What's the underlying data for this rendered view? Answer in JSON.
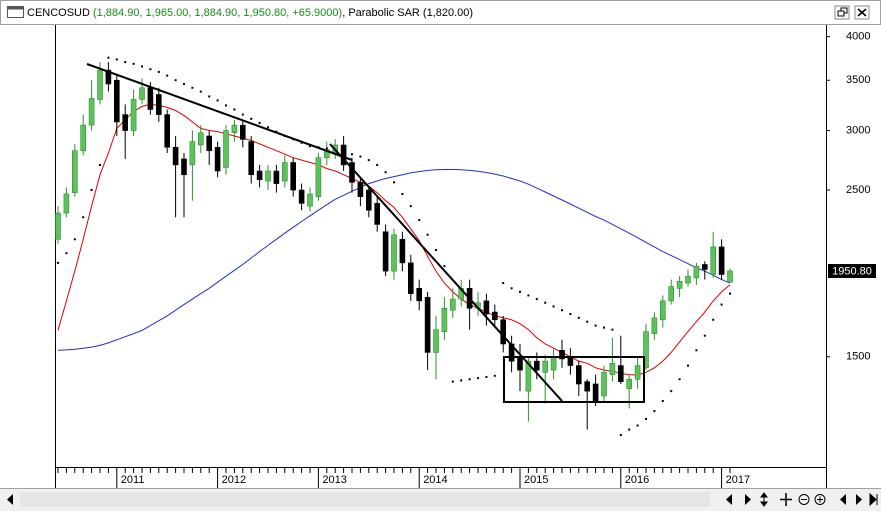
{
  "chart_data": {
    "type": "candlestick",
    "title": "CENCOSUD",
    "ohlc_label": "(1,884.90, 1,965.00, 1,884.90, 1,950.80, +65.9000)",
    "indicator_label": ", Parabolic SAR (1,820.00)",
    "categories": [
      null,
      null,
      null,
      null,
      null,
      null,
      null,
      "2011",
      null,
      null,
      null,
      null,
      null,
      null,
      null,
      null,
      null,
      null,
      null,
      "2012",
      null,
      null,
      null,
      null,
      null,
      null,
      null,
      null,
      null,
      null,
      null,
      "2013",
      null,
      null,
      null,
      null,
      null,
      null,
      null,
      null,
      null,
      null,
      null,
      "2014",
      null,
      null,
      null,
      null,
      null,
      null,
      null,
      null,
      null,
      null,
      null,
      "2015",
      null,
      null,
      null,
      null,
      null,
      null,
      null,
      null,
      null,
      null,
      null,
      "2016",
      null,
      null,
      null,
      null,
      null,
      null,
      null,
      null,
      null,
      null,
      null,
      "2017",
      null
    ],
    "open": [
      2150,
      2330,
      2480,
      2820,
      3050,
      3300,
      3610,
      3500,
      3150,
      3000,
      3300,
      3420,
      3350,
      3150,
      2850,
      2750,
      2700,
      2870,
      2950,
      2850,
      2680,
      2980,
      3050,
      2900,
      2650,
      2570,
      2650,
      2570,
      2720,
      2500,
      2380,
      2450,
      2760,
      2800,
      2870,
      2720,
      2560,
      2500,
      2400,
      2200,
      1950,
      2150,
      2000,
      1850,
      1800,
      1520,
      1620,
      1730,
      1790,
      1850,
      1740,
      1780,
      1720,
      1680,
      1560,
      1500,
      1350,
      1480,
      1430,
      1440,
      1530,
      1500,
      1460,
      1390,
      1380,
      1330,
      1420,
      1460,
      1360,
      1400,
      1450,
      1610,
      1680,
      1780,
      1850,
      1880,
      1910,
      1990,
      1930,
      2100,
      1884.9
    ],
    "high": [
      2380,
      2520,
      2880,
      3150,
      3500,
      3700,
      3700,
      3560,
      3250,
      3400,
      3520,
      3480,
      3420,
      3200,
      2950,
      2800,
      3000,
      3050,
      3000,
      2900,
      3050,
      3100,
      3100,
      2950,
      2700,
      2700,
      2700,
      2780,
      2760,
      2550,
      2520,
      2800,
      2900,
      2920,
      2950,
      2760,
      2600,
      2520,
      2450,
      2250,
      2220,
      2200,
      2050,
      1900,
      1830,
      1700,
      1800,
      1850,
      1900,
      1900,
      1830,
      1820,
      1760,
      1700,
      1600,
      1560,
      1500,
      1520,
      1510,
      1540,
      1580,
      1540,
      1480,
      1400,
      1420,
      1460,
      1590,
      1600,
      1420,
      1500,
      1660,
      1720,
      1810,
      1900,
      1920,
      1960,
      2000,
      2010,
      2200,
      2150,
      1965
    ],
    "low": [
      2120,
      2300,
      2450,
      2780,
      3000,
      3250,
      3380,
      2950,
      2750,
      2950,
      3250,
      3150,
      3080,
      2800,
      2300,
      2300,
      2420,
      2800,
      2700,
      2600,
      2620,
      2900,
      2850,
      2550,
      2520,
      2500,
      2480,
      2520,
      2450,
      2350,
      2340,
      2420,
      2700,
      2750,
      2650,
      2480,
      2380,
      2300,
      2200,
      1920,
      1900,
      1950,
      1780,
      1730,
      1440,
      1400,
      1580,
      1690,
      1750,
      1630,
      1700,
      1650,
      1640,
      1520,
      1430,
      1350,
      1230,
      1400,
      1300,
      1400,
      1450,
      1420,
      1330,
      1200,
      1290,
      1310,
      1390,
      1380,
      1280,
      1360,
      1440,
      1580,
      1640,
      1760,
      1800,
      1860,
      1870,
      1900,
      1910,
      1900,
      1884.9
    ],
    "close": [
      2330,
      2470,
      2820,
      3050,
      3310,
      3610,
      3460,
      3080,
      3000,
      3300,
      3420,
      3200,
      3150,
      2850,
      2700,
      2620,
      2900,
      2980,
      2820,
      2650,
      3000,
      3050,
      2920,
      2620,
      2580,
      2650,
      2550,
      2720,
      2500,
      2400,
      2470,
      2760,
      2830,
      2870,
      2700,
      2560,
      2450,
      2350,
      2250,
      1950,
      2180,
      2000,
      1820,
      1780,
      1520,
      1630,
      1740,
      1790,
      1850,
      1740,
      1770,
      1710,
      1680,
      1560,
      1480,
      1440,
      1480,
      1440,
      1480,
      1500,
      1490,
      1460,
      1380,
      1350,
      1310,
      1430,
      1470,
      1390,
      1400,
      1460,
      1620,
      1690,
      1780,
      1860,
      1890,
      1920,
      1980,
      1960,
      2100,
      1930,
      1950.8
    ],
    "up_color": "#5cc35c",
    "down_color": "#000000",
    "lines": [
      {
        "color": "#e00000",
        "values": [
          1626,
          1780,
          1950,
          2150,
          2380,
          2620,
          2800,
          3020,
          3100,
          3180,
          3230,
          3250,
          3240,
          3220,
          3190,
          3140,
          3080,
          3020,
          3000,
          2990,
          2970,
          2950,
          2930,
          2910,
          2880,
          2850,
          2820,
          2790,
          2760,
          2740,
          2720,
          2700,
          2670,
          2650,
          2620,
          2590,
          2560,
          2530,
          2480,
          2420,
          2370,
          2300,
          2220,
          2140,
          2040,
          1950,
          1880,
          1830,
          1790,
          1760,
          1740,
          1720,
          1700,
          1690,
          1680,
          1660,
          1630,
          1590,
          1560,
          1540,
          1520,
          1500,
          1480,
          1470,
          1450,
          1440,
          1435,
          1425,
          1420,
          1418,
          1430,
          1450,
          1480,
          1520,
          1570,
          1620,
          1670,
          1720,
          1780,
          1830,
          1870
        ]
      },
      {
        "color": "#1f2fd0",
        "values": [
          1530,
          1532,
          1535,
          1540,
          1545,
          1553,
          1565,
          1580,
          1595,
          1610,
          1626,
          1650,
          1675,
          1700,
          1730,
          1760,
          1790,
          1820,
          1850,
          1885,
          1920,
          1955,
          1990,
          2030,
          2070,
          2110,
          2150,
          2190,
          2230,
          2270,
          2310,
          2350,
          2390,
          2430,
          2460,
          2490,
          2520,
          2550,
          2570,
          2590,
          2605,
          2620,
          2635,
          2645,
          2655,
          2660,
          2662,
          2662,
          2660,
          2655,
          2648,
          2638,
          2625,
          2610,
          2590,
          2570,
          2545,
          2515,
          2485,
          2455,
          2425,
          2395,
          2365,
          2335,
          2305,
          2280,
          2250,
          2220,
          2190,
          2160,
          2130,
          2100,
          2070,
          2045,
          2020,
          1995,
          1970,
          1950,
          1925,
          1900,
          1880
        ]
      }
    ],
    "sar": {
      "color": "#000000",
      "values": [
        2000,
        2060,
        2150,
        2300,
        2500,
        2700,
        3750,
        3730,
        3700,
        3680,
        3650,
        3620,
        3590,
        3550,
        3500,
        3460,
        3420,
        3380,
        3330,
        3290,
        3240,
        3200,
        3150,
        3110,
        3070,
        3030,
        2990,
        2950,
        2920,
        2890,
        2860,
        2850,
        2840,
        2830,
        2810,
        2790,
        2770,
        2740,
        2700,
        2640,
        2560,
        2470,
        2380,
        2280,
        2180,
        2080,
        1980,
        1390,
        1395,
        1400,
        1405,
        1410,
        1415,
        1880,
        1850,
        1830,
        1810,
        1790,
        1770,
        1750,
        1730,
        1710,
        1690,
        1670,
        1650,
        1640,
        1630,
        1180,
        1200,
        1215,
        1240,
        1270,
        1310,
        1350,
        1400,
        1460,
        1530,
        1600,
        1680,
        1760,
        1820
      ]
    },
    "last_price": {
      "value": 1950.8,
      "label": "1950.80"
    },
    "ylim": [
      1070,
      4120
    ],
    "yticks": [
      4000,
      3500,
      3000,
      2500,
      1500
    ],
    "log_scale": true,
    "grid": false
  }
}
